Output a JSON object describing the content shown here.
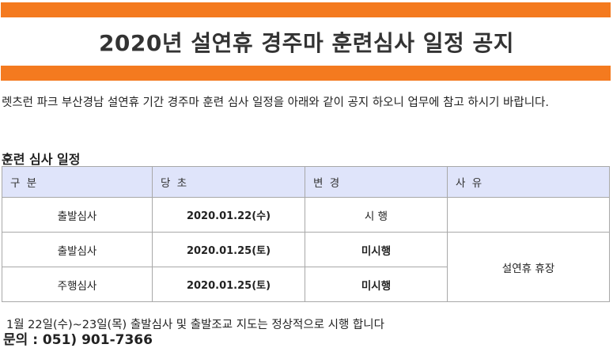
{
  "colors": {
    "accent_bar": "#f47a1f",
    "header_bg": "#dfe4fa",
    "highlight_text": "#e0001b"
  },
  "title": "2020년 설연휴 경주마 훈련심사 일정 공지",
  "intro": "렛츠런 파크 부산경남 설연휴 기간 경주마 훈련 심사 일정을 아래와 같이 공지 하오니 업무에 참고 하시기 바랍니다.",
  "section_title": "훈련 심사 일정",
  "table": {
    "headers": [
      "구 분",
      "당 초",
      "변 경",
      "사 유"
    ],
    "rows": [
      {
        "category": "출발심사",
        "date": "2020.01.22(수)",
        "change": "시 행",
        "reason": ""
      },
      {
        "category": "출발심사",
        "date": "2020.01.25(토)",
        "change": "미시행"
      },
      {
        "category": "주행심사",
        "date": "2020.01.25(토)",
        "change": "미시행"
      }
    ],
    "merged_reason": "설연휴 휴장"
  },
  "footer_note": "1월 22일(수)~23일(목) 출발심사 및 출발조교 지도는 정상적으로 시행 합니다",
  "contact": "문의 : 051) 901-7366"
}
